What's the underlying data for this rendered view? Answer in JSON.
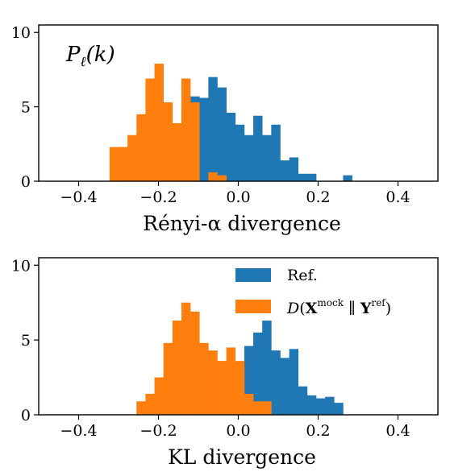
{
  "colors": {
    "ref": "#1f77b4",
    "mock": "#ff7f0e"
  },
  "chart_data": [
    {
      "type": "bar",
      "title": "",
      "annotation": "Pℓ(k)",
      "xlabel": "Rényi-α divergence",
      "ylabel": "",
      "xlim": [
        -0.5,
        0.5
      ],
      "ylim": [
        0,
        10.5
      ],
      "xticks": [
        "−0.4",
        "−0.2",
        "0.0",
        "0.2",
        "0.4"
      ],
      "xtick_values": [
        -0.4,
        -0.2,
        0.0,
        0.2,
        0.4
      ],
      "yticks": [
        "0",
        "5",
        "10"
      ],
      "ytick_values": [
        0,
        5,
        10
      ],
      "grid": false,
      "series": [
        {
          "bin_width": 0.0225,
          "bin_start": -0.3225,
          "values": [
            2.3,
            2.3,
            3.1,
            4.5,
            6.9,
            7.9,
            5.3,
            3.9,
            6.9,
            5.3,
            0,
            0.6,
            0.4,
            0,
            0,
            0,
            0,
            0,
            0,
            0,
            0,
            0
          ]
        },
        {
          "bin_width": 0.0225,
          "bin_start": -0.1425,
          "values": [
            5.0,
            5.7,
            5.6,
            7.0,
            6.3,
            4.6,
            3.8,
            3.1,
            4.4,
            3.1,
            3.8,
            1.4,
            1.6,
            0.5,
            0.5,
            0,
            0,
            0,
            0.4
          ]
        }
      ]
    },
    {
      "type": "bar",
      "title": "",
      "xlabel": "KL divergence",
      "ylabel": "",
      "xlim": [
        -0.5,
        0.5
      ],
      "ylim": [
        0,
        10.5
      ],
      "xticks": [
        "−0.4",
        "−0.2",
        "0.0",
        "0.2",
        "0.4"
      ],
      "xtick_values": [
        -0.4,
        -0.2,
        0.0,
        0.2,
        0.4
      ],
      "yticks": [
        "0",
        "5",
        "10"
      ],
      "ytick_values": [
        0,
        5,
        10
      ],
      "grid": false,
      "legend_position": "top-right",
      "legend": [
        {
          "series": "ref",
          "label": "Ref."
        },
        {
          "series": "mock",
          "label": "D(Xmock ∥ Yref)"
        }
      ],
      "series": [
        {
          "name": "Ref.",
          "bin_width": 0.0225,
          "bin_start": -0.0075,
          "values": [
            2.5,
            4.6,
            5.5,
            6.3,
            4.3,
            3.8,
            4.4,
            1.9,
            1.3,
            1.1,
            1.2,
            0.8
          ]
        },
        {
          "name": "D(Xmock ∥ Yref)",
          "bin_width": 0.0225,
          "bin_start": -0.255,
          "values": [
            0.9,
            1.4,
            2.5,
            4.8,
            6.3,
            7.5,
            6.9,
            4.8,
            4.3,
            3.6,
            4.5,
            3.6,
            1.4,
            0.9,
            0.9,
            0,
            0,
            0,
            0,
            0,
            0,
            0
          ]
        }
      ]
    }
  ]
}
